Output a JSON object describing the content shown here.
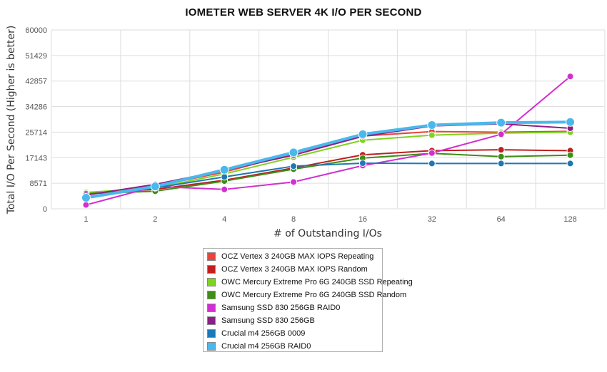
{
  "chart_data": {
    "type": "line",
    "title": "IOMETER WEB SERVER 4K I/O PER SECOND",
    "xlabel": "# of Outstanding I/Os",
    "ylabel": "Total I/O Per Second (Higher is better)",
    "categories": [
      "1",
      "2",
      "4",
      "8",
      "16",
      "32",
      "64",
      "128"
    ],
    "yticks": [
      "0",
      "8571",
      "17143",
      "25714",
      "34286",
      "42857",
      "51429",
      "60000"
    ],
    "ylim": [
      0,
      60000
    ],
    "grid": true,
    "legend_position": "bottom",
    "series": [
      {
        "name": "OCZ Vertex 3 240GB MAX IOPS Repeating",
        "color": "#e8453c",
        "values": [
          5000,
          7600,
          12300,
          18600,
          24400,
          25900,
          25700,
          26000
        ]
      },
      {
        "name": "OCZ Vertex 3 240GB MAX IOPS Random",
        "color": "#c01f1f",
        "values": [
          5300,
          6500,
          9600,
          13700,
          18100,
          19500,
          19800,
          19500
        ]
      },
      {
        "name": "OWC Mercury Extreme Pro 6G 240GB SSD Repeating",
        "color": "#7ed321",
        "values": [
          5500,
          7000,
          11700,
          17300,
          23000,
          24700,
          25400,
          25700
        ]
      },
      {
        "name": "OWC Mercury Extreme Pro 6G 240GB SSD Random",
        "color": "#3e8e17",
        "values": [
          5100,
          5900,
          9300,
          13300,
          17000,
          18600,
          17500,
          18000
        ]
      },
      {
        "name": "Samsung SSD 830 256GB RAID0",
        "color": "#d12fd1",
        "values": [
          1300,
          7500,
          6500,
          9000,
          14500,
          18700,
          25000,
          44400
        ]
      },
      {
        "name": "Samsung SSD 830 256GB",
        "color": "#8b1f87",
        "values": [
          4600,
          8200,
          12900,
          18000,
          24300,
          27800,
          28500,
          27000
        ]
      },
      {
        "name": "Crucial m4 256GB 0009",
        "color": "#1f78b4",
        "values": [
          4000,
          7000,
          10700,
          14300,
          15300,
          15200,
          15200,
          15200
        ]
      },
      {
        "name": "Crucial m4 256GB RAID0",
        "color": "#4ab8ec",
        "values": [
          3700,
          7500,
          13100,
          18900,
          25000,
          28100,
          28900,
          29100
        ]
      }
    ]
  }
}
